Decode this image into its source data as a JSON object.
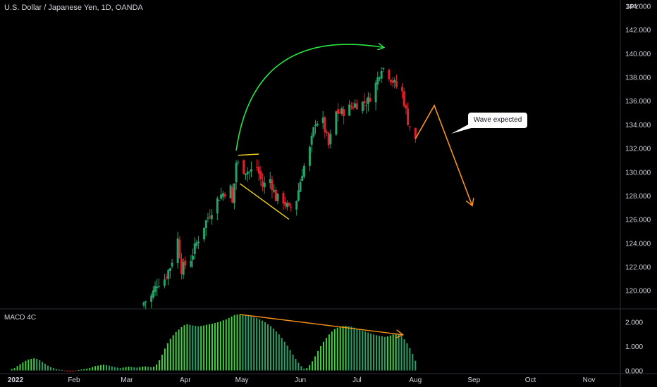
{
  "header": {
    "title": "U.S. Dollar / Japanese Yen, 1D, OANDA",
    "currency": "JPY"
  },
  "annotation": {
    "callout_text": "Wave expected"
  },
  "indicator": {
    "label": "MACD 4C"
  },
  "colors": {
    "up": "#26a269",
    "up_bright": "#3fd13f",
    "down": "#e0202a",
    "arrow_green": "#28e63c",
    "arrow_orange": "#f7931a",
    "yellow_line": "#f2d21b",
    "axis_text": "#d1d4dc",
    "separator": "#2a2e39"
  },
  "chart_data": [
    {
      "type": "candlestick",
      "title": "U.S. Dollar / Japanese Yen, 1D, OANDA",
      "ylabel": "JPY",
      "ylim": [
        118.5,
        144.5
      ],
      "y_ticks": [
        "120.000",
        "122.000",
        "124.000",
        "126.000",
        "128.000",
        "130.000",
        "132.000",
        "134.000",
        "136.000",
        "138.000",
        "140.000",
        "142.000",
        "144.000"
      ],
      "x_ticks": [
        "2022",
        "Feb",
        "Mar",
        "Apr",
        "May",
        "Jun",
        "Jul",
        "Aug",
        "Sep",
        "Oct",
        "Nov"
      ],
      "close_path": [
        [
          "2022-03-10",
          119.0
        ],
        [
          "2022-03-14",
          119.5
        ],
        [
          "2022-03-17",
          120.6
        ],
        [
          "2022-03-21",
          121.0
        ],
        [
          "2022-03-24",
          122.0
        ],
        [
          "2022-03-28",
          124.3
        ],
        [
          "2022-03-30",
          121.8
        ],
        [
          "2022-04-04",
          122.7
        ],
        [
          "2022-04-07",
          124.0
        ],
        [
          "2022-04-11",
          125.5
        ],
        [
          "2022-04-14",
          126.5
        ],
        [
          "2022-04-19",
          127.9
        ],
        [
          "2022-04-21",
          128.2
        ],
        [
          "2022-04-25",
          128.6
        ],
        [
          "2022-04-26",
          127.3
        ],
        [
          "2022-04-28",
          130.8
        ],
        [
          "2022-05-02",
          130.2
        ],
        [
          "2022-05-05",
          130.0
        ],
        [
          "2022-05-09",
          130.4
        ],
        [
          "2022-05-12",
          128.8
        ],
        [
          "2022-05-16",
          129.4
        ],
        [
          "2022-05-19",
          127.8
        ],
        [
          "2022-05-23",
          127.6
        ],
        [
          "2022-05-26",
          126.8
        ],
        [
          "2022-05-30",
          127.7
        ],
        [
          "2022-06-02",
          130.0
        ],
        [
          "2022-06-06",
          131.9
        ],
        [
          "2022-06-09",
          134.3
        ],
        [
          "2022-06-13",
          134.2
        ],
        [
          "2022-06-16",
          132.2
        ],
        [
          "2022-06-20",
          135.0
        ],
        [
          "2022-06-23",
          135.0
        ],
        [
          "2022-06-27",
          135.4
        ],
        [
          "2022-06-30",
          135.7
        ],
        [
          "2022-07-04",
          135.8
        ],
        [
          "2022-07-07",
          136.0
        ],
        [
          "2022-07-11",
          137.4
        ],
        [
          "2022-07-14",
          138.9
        ],
        [
          "2022-07-18",
          138.2
        ],
        [
          "2022-07-21",
          137.4
        ],
        [
          "2022-07-25",
          136.7
        ],
        [
          "2022-07-28",
          134.3
        ],
        [
          "2022-08-01",
          132.6
        ]
      ],
      "annotations": [
        {
          "kind": "curved-arrow",
          "color": "green",
          "from": [
            "2022-04-28",
            131.8
          ],
          "to": [
            "2022-07-15",
            140.5
          ]
        },
        {
          "kind": "line",
          "color": "yellow",
          "from": [
            "2022-04-29",
            131.4
          ],
          "to": [
            "2022-05-10",
            131.5
          ]
        },
        {
          "kind": "line",
          "color": "yellow",
          "from": [
            "2022-04-30",
            129.0
          ],
          "to": [
            "2022-05-26",
            126.0
          ]
        },
        {
          "kind": "polyline-arrow",
          "color": "orange",
          "points": [
            [
              "2022-08-01",
              132.8
            ],
            [
              "2022-08-11",
              135.6
            ],
            [
              "2022-08-31",
              127.2
            ]
          ]
        }
      ]
    },
    {
      "type": "bar",
      "title": "MACD 4C",
      "ylim": [
        -0.1,
        2.5
      ],
      "y_ticks": [
        "0.000",
        "1.000",
        "2.000"
      ],
      "start_date": "2021-12-30",
      "end_date": "2022-08-01",
      "values": [
        0.06,
        0.1,
        0.18,
        0.26,
        0.33,
        0.4,
        0.45,
        0.48,
        0.5,
        0.48,
        0.42,
        0.35,
        0.28,
        0.2,
        0.14,
        0.1,
        0.06,
        0.04,
        0.02,
        -0.02,
        -0.05,
        -0.06,
        -0.04,
        -0.01,
        0.02,
        0.04,
        0.06,
        0.08,
        0.1,
        0.14,
        0.18,
        0.2,
        0.22,
        0.24,
        0.22,
        0.2,
        0.17,
        0.14,
        0.12,
        0.1,
        0.12,
        0.14,
        0.16,
        0.15,
        0.13,
        0.12,
        0.14,
        0.16,
        0.17,
        0.15,
        0.14,
        0.16,
        0.25,
        0.42,
        0.65,
        0.9,
        1.12,
        1.3,
        1.45,
        1.58,
        1.68,
        1.78,
        1.86,
        1.9,
        1.88,
        1.85,
        1.83,
        1.82,
        1.83,
        1.85,
        1.88,
        1.9,
        1.92,
        1.95,
        1.98,
        2.02,
        2.06,
        2.1,
        2.16,
        2.22,
        2.28,
        2.3,
        2.31,
        2.29,
        2.26,
        2.24,
        2.22,
        2.18,
        2.15,
        2.1,
        2.05,
        1.98,
        1.9,
        1.82,
        1.72,
        1.6,
        1.48,
        1.34,
        1.18,
        1.02,
        0.84,
        0.66,
        0.48,
        0.32,
        0.18,
        0.08,
        0.1,
        0.22,
        0.38,
        0.58,
        0.8,
        1.0,
        1.18,
        1.34,
        1.48,
        1.6,
        1.7,
        1.76,
        1.8,
        1.82,
        1.83,
        1.82,
        1.8,
        1.76,
        1.72,
        1.68,
        1.64,
        1.6,
        1.56,
        1.52,
        1.48,
        1.45,
        1.42,
        1.4,
        1.38,
        1.4,
        1.44,
        1.48,
        1.5,
        1.48,
        1.4,
        1.28,
        1.12,
        0.92,
        0.68,
        0.4
      ],
      "annotations": [
        {
          "kind": "arrow-line",
          "color": "orange",
          "from": [
            "2022-04-30",
            2.3
          ],
          "to": [
            "2022-07-25",
            1.47
          ]
        }
      ]
    }
  ]
}
